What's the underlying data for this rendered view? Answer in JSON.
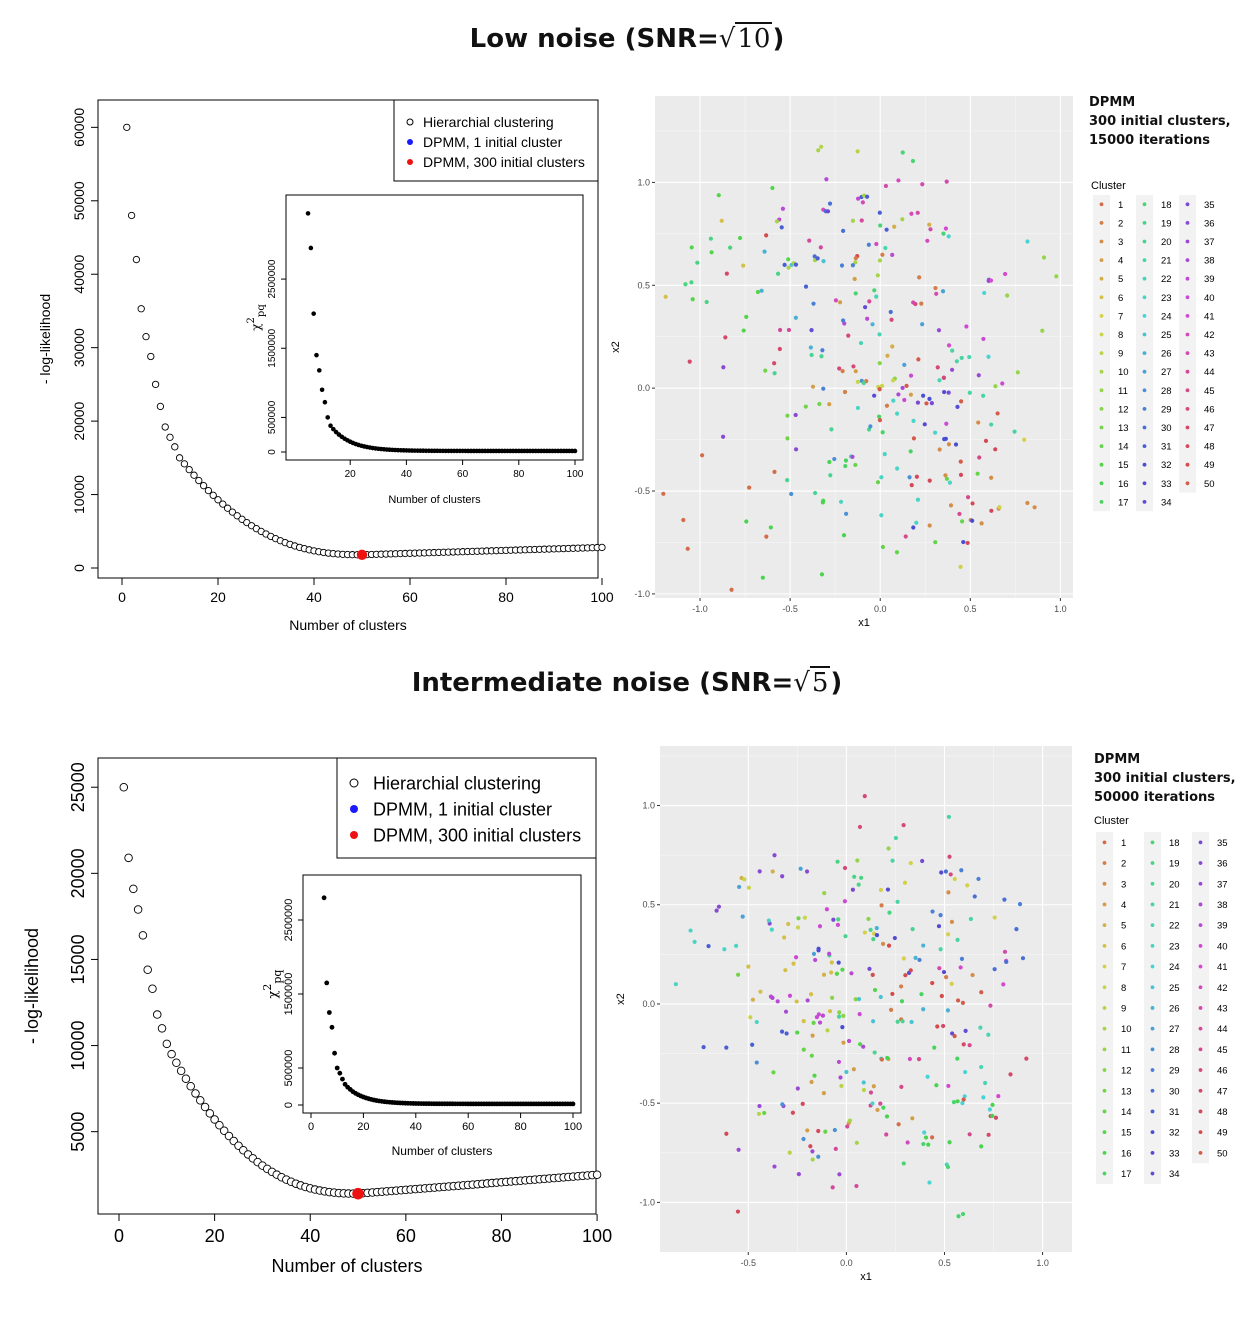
{
  "panels": [
    {
      "title_prefix": "Low noise (SNR=",
      "radical": "√",
      "radicand": "10",
      "title_suffix": ")",
      "curve": {
        "xlabel": "Number of clusters",
        "ylabel": "- log-likelihood",
        "xticks": [
          0,
          20,
          40,
          60,
          80,
          100
        ],
        "yticks": [
          0,
          10000,
          20000,
          30000,
          40000,
          50000,
          60000
        ],
        "ylim": [
          0,
          61000
        ],
        "first_values": [
          60000,
          48000,
          42000,
          35300,
          31500,
          28800,
          25000,
          22000,
          19200,
          17800,
          16500,
          15000
        ],
        "min_value": 1800,
        "final_value": 2800,
        "dpmm_300": {
          "x": 50,
          "y": 1800
        },
        "legend": [
          "Hierarchial clustering",
          "DPMM, 1 initial cluster",
          "DPMM, 300 initial clusters"
        ],
        "legend_colors": [
          "#ffffff",
          "#1a1aff",
          "#ee1111"
        ]
      },
      "inset": {
        "xlabel": "Number of clusters",
        "ylabel_main": "χ",
        "ylabel_sup": "2",
        "ylabel_sub": "pq",
        "xticks": [
          20,
          40,
          60,
          80,
          100
        ],
        "yticks": [
          0,
          500000,
          1500000,
          2500000
        ],
        "ylim": [
          0,
          3600000
        ],
        "first_values": [
          3450000,
          2950000,
          2000000,
          1400000,
          1180000,
          900000,
          720000,
          500000,
          380000,
          330000
        ],
        "decay_start_x": 15
      },
      "scatter": {
        "xlabel": "x1",
        "ylabel": "x2",
        "xticks": [
          "-1.0",
          "-0.5",
          "0.0",
          "0.5",
          "1.0"
        ],
        "yticks": [
          "-1.0",
          "-0.5",
          "0.0",
          "0.5",
          "1.0"
        ],
        "xlim": [
          -1.25,
          1.07
        ],
        "ylim": [
          -1.02,
          1.42
        ],
        "n_points": 300,
        "annotation": [
          "DPMM",
          "300 initial clusters,",
          "15000 iterations"
        ],
        "legend_title": "Cluster",
        "clusters": [
          "1",
          "2",
          "3",
          "4",
          "5",
          "6",
          "7",
          "8",
          "9",
          "10",
          "11",
          "12",
          "13",
          "14",
          "15",
          "16",
          "17",
          "18",
          "19",
          "20",
          "21",
          "22",
          "23",
          "24",
          "25",
          "26",
          "27",
          "28",
          "29",
          "30",
          "31",
          "32",
          "33",
          "34",
          "35",
          "36",
          "37",
          "38",
          "39",
          "40",
          "41",
          "42",
          "43",
          "44",
          "45",
          "46",
          "47",
          "48",
          "49",
          "50"
        ]
      }
    },
    {
      "title_prefix": "Intermediate noise (SNR=",
      "radical": "√",
      "radicand": "5",
      "title_suffix": ")",
      "curve": {
        "xlabel": "Number of clusters",
        "ylabel": "- log-likelihood",
        "xticks": [
          0,
          20,
          40,
          60,
          80,
          100
        ],
        "yticks": [
          5000,
          10000,
          15000,
          20000,
          25000
        ],
        "ylim": [
          800,
          26000
        ],
        "first_values": [
          25000,
          20900,
          19100,
          17900,
          16400,
          14400,
          13300,
          11800,
          11000,
          10100,
          9500,
          9000
        ],
        "min_value": 1400,
        "final_value": 2500,
        "dpmm_300": {
          "x": 50,
          "y": 1400
        },
        "legend": [
          "Hierarchial clustering",
          "DPMM, 1 initial cluster",
          "DPMM, 300 initial clusters"
        ],
        "legend_colors": [
          "#ffffff",
          "#1a1aff",
          "#ee1111"
        ]
      },
      "inset": {
        "xlabel": "Number of clusters",
        "ylabel_main": "χ",
        "ylabel_sup": "2",
        "ylabel_sub": "pq",
        "xticks": [
          0,
          20,
          40,
          60,
          80,
          100
        ],
        "yticks": [
          0,
          500000,
          1500000,
          2500000
        ],
        "ylim": [
          0,
          3000000
        ],
        "first_values": [
          2800000,
          1650000,
          1250000,
          1050000,
          700000,
          500000,
          430000,
          350000,
          280000,
          240000,
          210000,
          180000
        ],
        "decay_start_x": 15
      },
      "scatter": {
        "xlabel": "x1",
        "ylabel": "x2",
        "xticks": [
          "-0.5",
          "0.0",
          "0.5",
          "1.0"
        ],
        "yticks": [
          "-1.0",
          "-0.5",
          "0.0",
          "0.5",
          "1.0"
        ],
        "xlim": [
          -0.95,
          1.15
        ],
        "ylim": [
          -1.25,
          1.3
        ],
        "n_points": 300,
        "annotation": [
          "DPMM",
          "300 initial clusters,",
          "50000 iterations"
        ],
        "legend_title": "Cluster",
        "clusters": [
          "1",
          "2",
          "3",
          "4",
          "5",
          "6",
          "7",
          "8",
          "9",
          "10",
          "11",
          "12",
          "13",
          "14",
          "15",
          "16",
          "17",
          "18",
          "19",
          "20",
          "21",
          "22",
          "23",
          "24",
          "25",
          "26",
          "27",
          "28",
          "29",
          "30",
          "31",
          "32",
          "33",
          "34",
          "35",
          "36",
          "37",
          "38",
          "39",
          "40",
          "41",
          "42",
          "43",
          "44",
          "45",
          "46",
          "47",
          "48",
          "49",
          "50"
        ]
      }
    }
  ]
}
